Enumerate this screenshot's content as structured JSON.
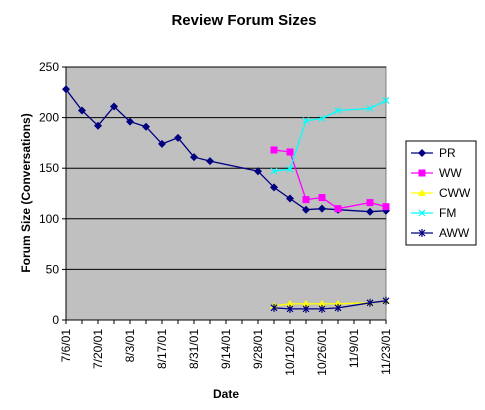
{
  "chart_data": {
    "type": "line",
    "title": "Review Forum Sizes",
    "xlabel": "Date",
    "ylabel": "Forum Size (Conversations)",
    "ylim": [
      0,
      250
    ],
    "yticks": [
      0,
      50,
      100,
      150,
      200,
      250
    ],
    "x_tick_labels": [
      "7/6/01",
      "7/20/01",
      "8/3/01",
      "8/17/01",
      "8/31/01",
      "9/14/01",
      "9/28/01",
      "10/12/01",
      "10/26/01",
      "11/9/01",
      "11/23/01"
    ],
    "xlim": [
      "2001-07-06",
      "2001-11-23"
    ],
    "grid": "horizontal major gridlines",
    "legend_position": "right",
    "plot_background": "#c0c0c0",
    "series": [
      {
        "name": "PR",
        "color": "#000080",
        "marker": "diamond",
        "points": [
          [
            "2001-07-06",
            228
          ],
          [
            "2001-07-13",
            207
          ],
          [
            "2001-07-20",
            192
          ],
          [
            "2001-07-27",
            211
          ],
          [
            "2001-08-03",
            196
          ],
          [
            "2001-08-10",
            191
          ],
          [
            "2001-08-17",
            174
          ],
          [
            "2001-08-24",
            180
          ],
          [
            "2001-08-31",
            161
          ],
          [
            "2001-09-07",
            157
          ],
          [
            "2001-09-28",
            147
          ],
          [
            "2001-10-05",
            131
          ],
          [
            "2001-10-12",
            120
          ],
          [
            "2001-10-19",
            109
          ],
          [
            "2001-10-26",
            110
          ],
          [
            "2001-11-02",
            109
          ],
          [
            "2001-11-16",
            107
          ],
          [
            "2001-11-23",
            108
          ]
        ]
      },
      {
        "name": "WW",
        "color": "#ff00ff",
        "marker": "square",
        "points": [
          [
            "2001-10-05",
            168
          ],
          [
            "2001-10-12",
            166
          ],
          [
            "2001-10-19",
            119
          ],
          [
            "2001-10-26",
            121
          ],
          [
            "2001-11-02",
            110
          ],
          [
            "2001-11-16",
            116
          ],
          [
            "2001-11-23",
            112
          ]
        ]
      },
      {
        "name": "CWW",
        "color": "#ffff00",
        "marker": "triangle",
        "points": [
          [
            "2001-10-05",
            14
          ],
          [
            "2001-10-12",
            16
          ],
          [
            "2001-10-19",
            16
          ],
          [
            "2001-10-26",
            16
          ],
          [
            "2001-11-02",
            16
          ],
          [
            "2001-11-16",
            17
          ],
          [
            "2001-11-23",
            19
          ]
        ]
      },
      {
        "name": "FM",
        "color": "#00ffff",
        "marker": "x",
        "points": [
          [
            "2001-10-05",
            147
          ],
          [
            "2001-10-12",
            149
          ],
          [
            "2001-10-19",
            197
          ],
          [
            "2001-10-26",
            199
          ],
          [
            "2001-11-02",
            207
          ],
          [
            "2001-11-16",
            209
          ],
          [
            "2001-11-23",
            217
          ]
        ]
      },
      {
        "name": "AWW",
        "color": "#000080",
        "marker": "star",
        "points": [
          [
            "2001-10-05",
            12
          ],
          [
            "2001-10-12",
            11
          ],
          [
            "2001-10-19",
            11
          ],
          [
            "2001-10-26",
            11
          ],
          [
            "2001-11-02",
            12
          ],
          [
            "2001-11-16",
            17
          ],
          [
            "2001-11-23",
            19
          ]
        ]
      }
    ]
  }
}
